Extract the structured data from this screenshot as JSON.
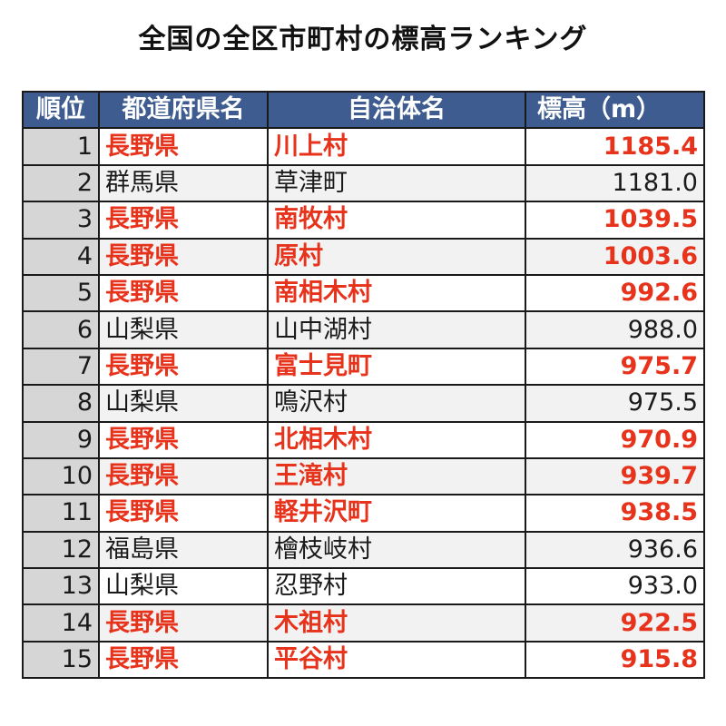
{
  "title": "全国の全区市町村の標高ランキング",
  "headers": {
    "rank": "順位",
    "prefecture": "都道府県名",
    "municipality": "自治体名",
    "elevation": "標高（m）"
  },
  "colors": {
    "header_bg": "#3e5c8f",
    "highlight": "#e8331c",
    "rank_bg": "#d6d6d6"
  },
  "rows": [
    {
      "rank": "1",
      "prefecture": "長野県",
      "municipality": "川上村",
      "elevation": "1185.4",
      "highlight": true
    },
    {
      "rank": "2",
      "prefecture": "群馬県",
      "municipality": "草津町",
      "elevation": "1181.0",
      "highlight": false
    },
    {
      "rank": "3",
      "prefecture": "長野県",
      "municipality": "南牧村",
      "elevation": "1039.5",
      "highlight": true
    },
    {
      "rank": "4",
      "prefecture": "長野県",
      "municipality": "原村",
      "elevation": "1003.6",
      "highlight": true
    },
    {
      "rank": "5",
      "prefecture": "長野県",
      "municipality": "南相木村",
      "elevation": "992.6",
      "highlight": true
    },
    {
      "rank": "6",
      "prefecture": "山梨県",
      "municipality": "山中湖村",
      "elevation": "988.0",
      "highlight": false
    },
    {
      "rank": "7",
      "prefecture": "長野県",
      "municipality": "富士見町",
      "elevation": "975.7",
      "highlight": true
    },
    {
      "rank": "8",
      "prefecture": "山梨県",
      "municipality": "鳴沢村",
      "elevation": "975.5",
      "highlight": false
    },
    {
      "rank": "9",
      "prefecture": "長野県",
      "municipality": "北相木村",
      "elevation": "970.9",
      "highlight": true
    },
    {
      "rank": "10",
      "prefecture": "長野県",
      "municipality": "王滝村",
      "elevation": "939.7",
      "highlight": true
    },
    {
      "rank": "11",
      "prefecture": "長野県",
      "municipality": "軽井沢町",
      "elevation": "938.5",
      "highlight": true
    },
    {
      "rank": "12",
      "prefecture": "福島県",
      "municipality": "檜枝岐村",
      "elevation": "936.6",
      "highlight": false
    },
    {
      "rank": "13",
      "prefecture": "山梨県",
      "municipality": "忍野村",
      "elevation": "933.0",
      "highlight": false
    },
    {
      "rank": "14",
      "prefecture": "長野県",
      "municipality": "木祖村",
      "elevation": "922.5",
      "highlight": true
    },
    {
      "rank": "15",
      "prefecture": "長野県",
      "municipality": "平谷村",
      "elevation": "915.8",
      "highlight": true
    }
  ]
}
